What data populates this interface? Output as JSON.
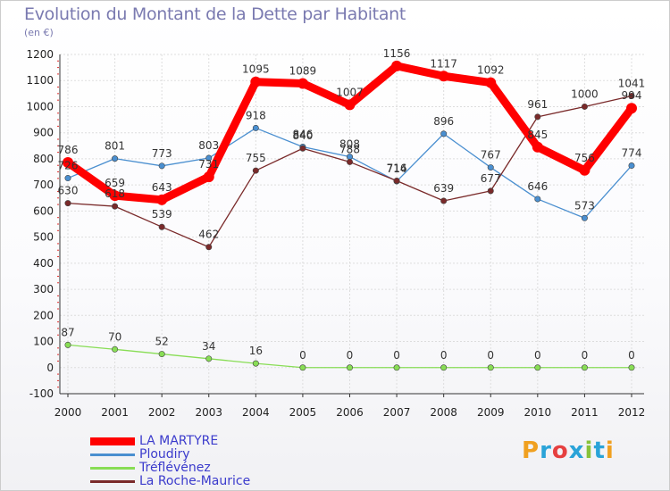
{
  "title": "Evolution du Montant de la Dette par Habitant",
  "subtitle": "(en €)",
  "logo_text": "Proxiti",
  "colors": {
    "grid": "#dddddd",
    "axis": "#333333",
    "title": "#7a7ab0",
    "legend_text": "#3b3bcc",
    "tick_marker": "#e03030"
  },
  "chart_data": {
    "type": "line",
    "title": "Evolution du Montant de la Dette par Habitant",
    "subtitle": "(en €)",
    "xlabel": "",
    "ylabel": "",
    "categories": [
      "2000",
      "2001",
      "2002",
      "2003",
      "2004",
      "2005",
      "2006",
      "2007",
      "2008",
      "2009",
      "2010",
      "2011",
      "2012"
    ],
    "ylim": [
      -100,
      1200
    ],
    "yticks": [
      -100,
      0,
      100,
      200,
      300,
      400,
      500,
      600,
      700,
      800,
      900,
      1000,
      1100,
      1200
    ],
    "grid": true,
    "legend_position": "bottom-left",
    "series": [
      {
        "name": "LA MARTYRE",
        "color": "#ff0000",
        "values": [
          786,
          659,
          643,
          731,
          1095,
          1089,
          1007,
          1156,
          1117,
          1092,
          845,
          756,
          994
        ],
        "labels": [
          "786",
          "659",
          "643",
          "731",
          "1095",
          "1089",
          "1007",
          "1156",
          "1117",
          "1092",
          "845",
          "756",
          "994"
        ]
      },
      {
        "name": "Ploudiry",
        "color": "#4a8fd0",
        "values": [
          726,
          801,
          773,
          803,
          918,
          846,
          808,
          714,
          896,
          767,
          646,
          573,
          774
        ],
        "labels": [
          "726",
          "801",
          "773",
          "803",
          "918",
          "846",
          "808",
          "714",
          "896",
          "767",
          "646",
          "573",
          "774"
        ]
      },
      {
        "name": "Tréflévénez",
        "color": "#88dd55",
        "values": [
          87,
          70,
          52,
          34,
          16,
          0,
          0,
          0,
          0,
          0,
          0,
          0,
          0
        ],
        "labels": [
          "87",
          "70",
          "52",
          "34",
          "16",
          "0",
          "0",
          "0",
          "0",
          "0",
          "0",
          "0",
          "0"
        ]
      },
      {
        "name": "La Roche-Maurice",
        "color": "#7a2a2a",
        "values": [
          630,
          618,
          539,
          462,
          755,
          840,
          788,
          716,
          639,
          677,
          961,
          1000,
          1041
        ],
        "labels": [
          "630",
          "618",
          "539",
          "462",
          "755",
          "840",
          "788",
          "716",
          "639",
          "677",
          "961",
          "1000",
          "1041"
        ]
      }
    ]
  }
}
